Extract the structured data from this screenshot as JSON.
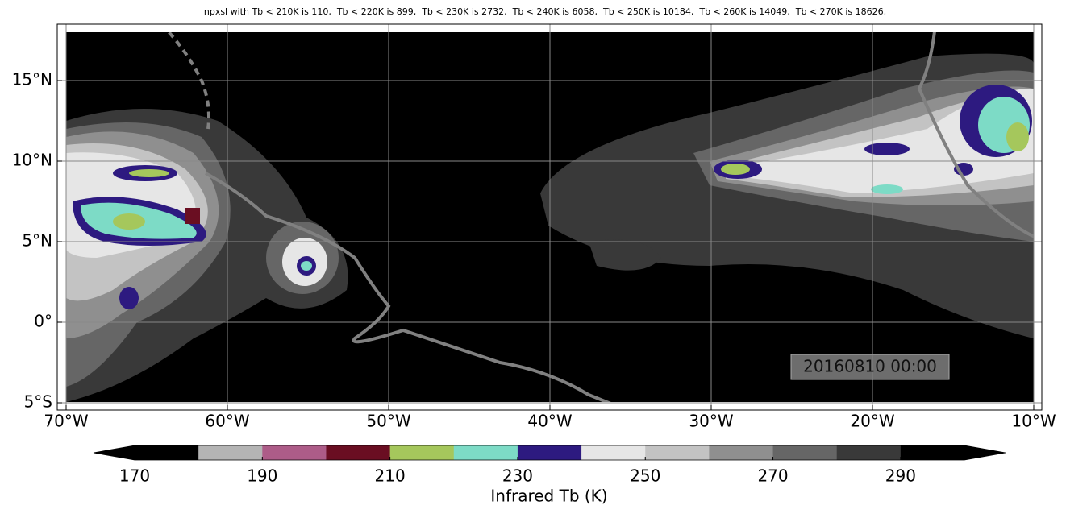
{
  "map": {
    "title": "npxsl with Tb < 210K is 110,  Tb < 220K is 899,  Tb < 230K is 2732,  Tb < 240K is 6058,  Tb < 250K is 10184,  Tb < 260K is 14049,  Tb < 270K is 18626,",
    "xlim": [
      -70.55,
      -9.5
    ],
    "ylim": [
      -5.45,
      18.5
    ],
    "xticks": [
      {
        "value": -70,
        "label": "70°W"
      },
      {
        "value": -60,
        "label": "60°W"
      },
      {
        "value": -50,
        "label": "50°W"
      },
      {
        "value": -40,
        "label": "40°W"
      },
      {
        "value": -30,
        "label": "30°W"
      },
      {
        "value": -20,
        "label": "20°W"
      },
      {
        "value": -10,
        "label": "10°W"
      }
    ],
    "yticks": [
      {
        "value": -5,
        "label": "5°S"
      },
      {
        "value": 0,
        "label": "0°"
      },
      {
        "value": 5,
        "label": "5°N"
      },
      {
        "value": 10,
        "label": "10°N"
      },
      {
        "value": 15,
        "label": "15°N"
      }
    ],
    "grid": true,
    "timestamp": "20160810 00:00",
    "colorbar": {
      "label": "Infrared Tb (K)",
      "levels": [
        170,
        180,
        190,
        200,
        210,
        220,
        230,
        240,
        250,
        260,
        270,
        280,
        290,
        300
      ],
      "colors": [
        "#000000",
        "#b4b4b4",
        "#ad5c88",
        "#6a0e22",
        "#a5c75c",
        "#7ddbc6",
        "#2d1a80",
        "#e6e6e6",
        "#c3c3c3",
        "#8f8f8f",
        "#666666",
        "#393939",
        "#000000"
      ],
      "under_color": "#000000",
      "over_color": "#000000",
      "ticks": [
        170,
        190,
        210,
        230,
        250,
        270,
        290
      ]
    }
  }
}
